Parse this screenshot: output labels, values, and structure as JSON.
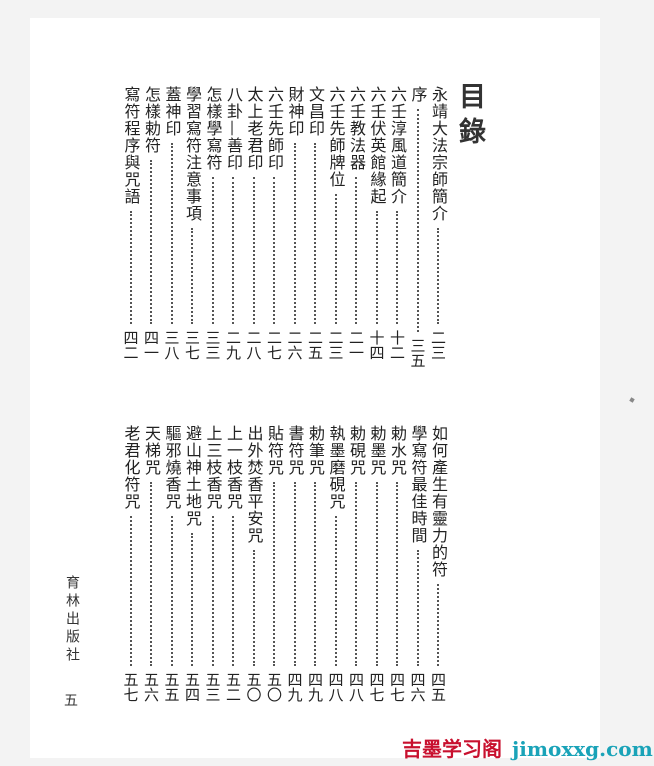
{
  "title": "目錄",
  "sections": [
    [
      {
        "t": "永靖大法宗師簡介",
        "n": "二三"
      },
      {
        "t": "序",
        "n": "三五"
      },
      {
        "t": "六壬淳風道簡介",
        "n": "十二"
      },
      {
        "t": "六壬伏英館緣起",
        "n": "十四"
      },
      {
        "t": "六壬教法器",
        "n": "二一"
      },
      {
        "t": "六壬先師牌位",
        "n": "二三"
      },
      {
        "t": "文昌印",
        "n": "二五"
      },
      {
        "t": "財神印",
        "n": "二六"
      },
      {
        "t": "六壬先師印",
        "n": "二七"
      },
      {
        "t": "太上老君印",
        "n": "二八"
      },
      {
        "t": "八卦—善印",
        "n": "二九"
      },
      {
        "t": "怎樣學寫符",
        "n": "三三"
      },
      {
        "t": "學習寫符注意事項",
        "n": "三七"
      },
      {
        "t": "蓋神印",
        "n": "三八"
      },
      {
        "t": "怎樣勅符",
        "n": "四一"
      },
      {
        "t": "寫符程序與咒語",
        "n": "四二"
      }
    ],
    [
      {
        "t": "如何產生有靈力的符",
        "n": "四五"
      },
      {
        "t": "學寫符最佳時間",
        "n": "四六"
      },
      {
        "t": "勅水咒",
        "n": "四七"
      },
      {
        "t": "勅墨咒",
        "n": "四七"
      },
      {
        "t": "勅硯咒",
        "n": "四八"
      },
      {
        "t": "執墨磨硯咒",
        "n": "四八"
      },
      {
        "t": "勅筆咒",
        "n": "四九"
      },
      {
        "t": "書符咒",
        "n": "四九"
      },
      {
        "t": "貼符咒",
        "n": "五〇"
      },
      {
        "t": "出外焚香平安咒",
        "n": "五〇"
      },
      {
        "t": "上一枝香咒",
        "n": "五二"
      },
      {
        "t": "上三枝香咒",
        "n": "五三"
      },
      {
        "t": "避山神土地咒",
        "n": "五四"
      },
      {
        "t": "驅邪燒香咒",
        "n": "五五"
      },
      {
        "t": "天梯咒",
        "n": "五六"
      },
      {
        "t": "老君化符咒",
        "n": "五七"
      }
    ]
  ],
  "publisher": "育林出版社",
  "page_number": "五",
  "watermark": {
    "cn": "吉墨学习阁",
    "en": "jimoxxg.com"
  }
}
